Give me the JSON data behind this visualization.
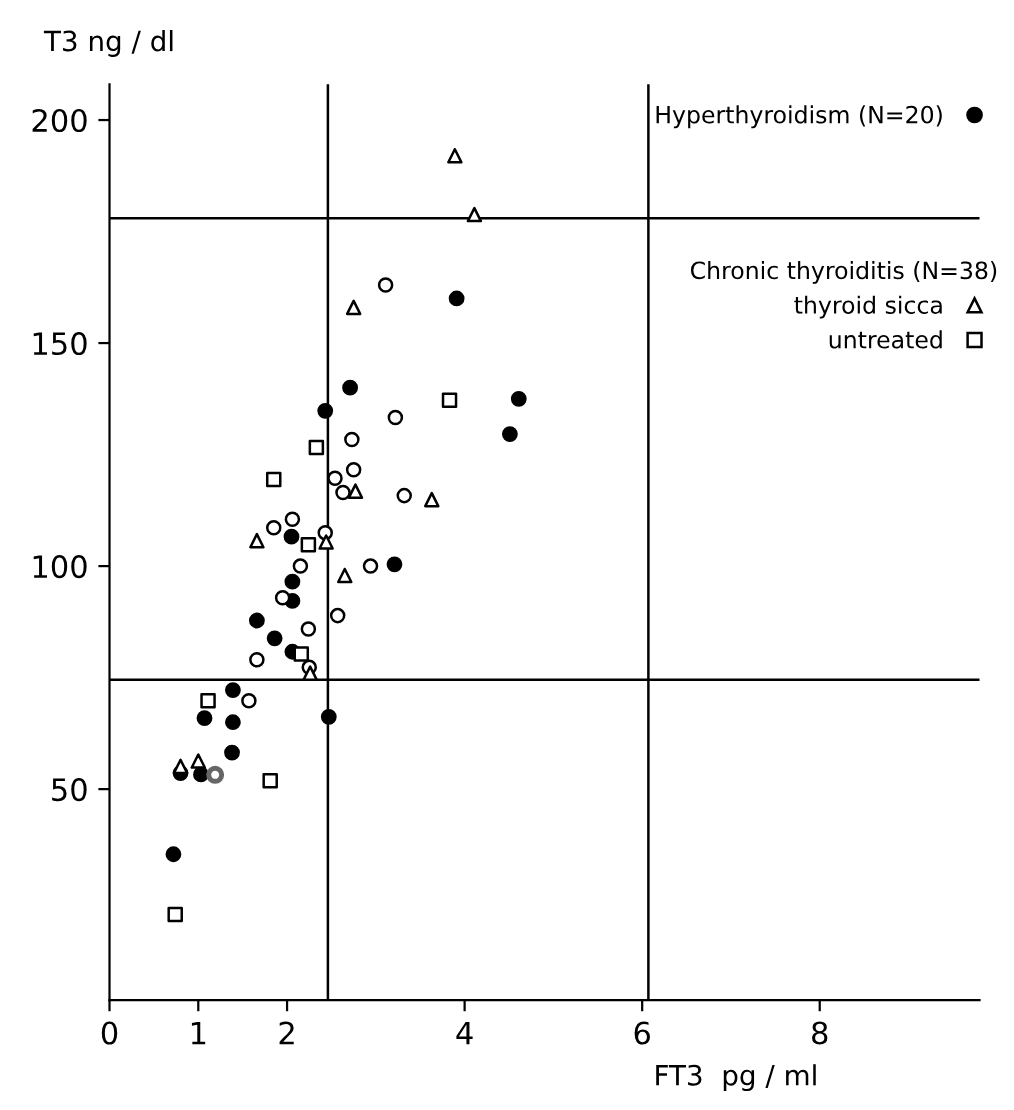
{
  "chart_data": {
    "type": "scatter",
    "xlabel": "FT3  pg / ml",
    "ylabel": "T3 ng / dl",
    "legend_title": "Chronic thyroiditis (N=38)",
    "xlim": [
      0,
      9.8
    ],
    "ylim": [
      2.7,
      208
    ],
    "xticks": [
      0,
      1,
      2,
      4,
      6,
      8
    ],
    "yticks": [
      50,
      100,
      150,
      200
    ],
    "grid": false,
    "legend": "top right",
    "ref_lines": [
      {
        "axis": "x",
        "value": 2.46
      },
      {
        "axis": "x",
        "value": 6.07
      },
      {
        "axis": "y",
        "value": 74.5
      },
      {
        "axis": "y",
        "value": 178
      }
    ],
    "series": [
      {
        "name": "Hyperthyroidism (N=20)",
        "color": "#000000",
        "marker": "circle",
        "x": [
          3.91,
          2.71,
          2.43,
          4.61,
          4.51,
          2.05,
          3.21,
          2.06,
          2.06,
          1.66,
          1.86,
          2.06,
          1.39,
          1.07,
          1.39,
          2.47,
          1.38,
          0.8,
          1.03,
          0.72
        ],
        "values": [
          160,
          140,
          134.8,
          137.5,
          129.6,
          106.6,
          100.4,
          96.5,
          92.2,
          87.8,
          83.8,
          80.8,
          72.2,
          65.9,
          65,
          66.2,
          58.2,
          53.6,
          53.3,
          35.4
        ]
      },
      {
        "color": "#000000",
        "marker": "circle",
        "x": [
          3.11,
          3.22,
          2.73,
          2.75,
          2.54,
          2.63,
          3.32,
          1.85,
          2.06,
          2.43,
          2.15,
          2.94,
          1.95,
          2.57,
          2.24,
          1.66,
          2.25,
          1.57
        ],
        "values": [
          163,
          133.3,
          128.4,
          121.6,
          119.7,
          116.5,
          115.8,
          108.6,
          110.5,
          107.5,
          100,
          100,
          92.9,
          88.9,
          85.9,
          79,
          77.3,
          69.8
        ]
      },
      {
        "name": "thyroid sicca",
        "color": "#000000",
        "marker": "triangle",
        "x": [
          3.89,
          4.11,
          2.75,
          2.77,
          3.63,
          1.66,
          2.44,
          2.65,
          2.26,
          0.8,
          1.0
        ],
        "values": [
          192,
          178.8,
          158,
          116.8,
          114.9,
          105.7,
          105.4,
          97.9,
          76,
          55.1,
          56.3
        ]
      },
      {
        "color": "#666666",
        "marker": "circle",
        "x": [
          1.19
        ],
        "values": [
          53.2
        ]
      },
      {
        "name": "untreated",
        "color": "#000000",
        "marker": "square",
        "x": [
          3.83,
          2.33,
          1.85,
          2.24,
          2.16,
          1.11,
          1.81,
          0.74
        ],
        "values": [
          137.2,
          126.6,
          119.4,
          104.8,
          80.3,
          69.8,
          51.9,
          21.9
        ]
      }
    ]
  }
}
